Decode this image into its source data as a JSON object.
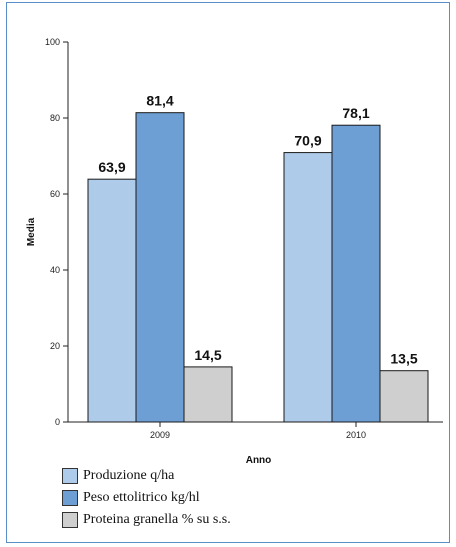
{
  "chart_data": {
    "type": "bar",
    "categories": [
      "2009",
      "2010"
    ],
    "series": [
      {
        "name": "Produzione q/ha",
        "values": [
          63.9,
          70.9
        ],
        "labels": [
          "63,9",
          "70,9"
        ],
        "color": "#aecbe9"
      },
      {
        "name": "Peso ettolitrico kg/hl",
        "values": [
          81.4,
          78.1
        ],
        "labels": [
          "81,4",
          "78,1"
        ],
        "color": "#6d9fd4"
      },
      {
        "name": "Proteina granella % su s.s.",
        "values": [
          14.5,
          13.5
        ],
        "labels": [
          "14,5",
          "13,5"
        ],
        "color": "#cfcfcf"
      }
    ],
    "xlabel": "Anno",
    "ylabel": "Media",
    "ylim": [
      0,
      100
    ],
    "yticks": [
      0,
      20,
      40,
      60,
      80,
      100
    ],
    "grid": false,
    "legend_position": "bottom-left"
  }
}
